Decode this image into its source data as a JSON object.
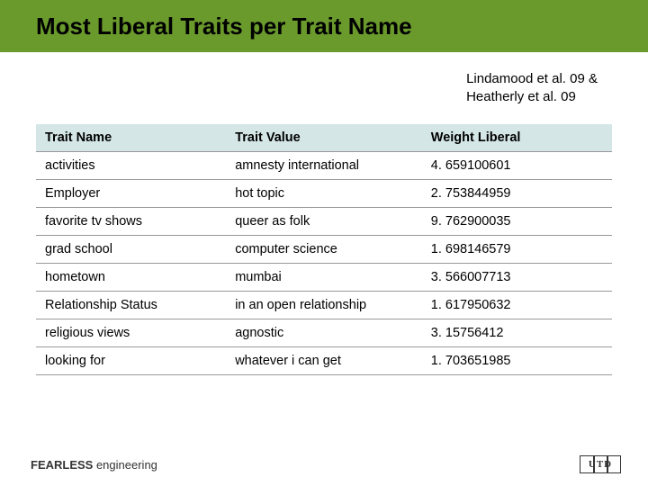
{
  "title": "Most Liberal Traits per Trait Name",
  "citation_line1": "Lindamood et al. 09 &",
  "citation_line2": "Heatherly et al. 09",
  "table": {
    "headers": [
      "Trait Name",
      "Trait Value",
      "Weight Liberal"
    ],
    "rows": [
      [
        "activities",
        "amnesty international",
        "4. 659100601"
      ],
      [
        "Employer",
        "hot topic",
        "2. 753844959"
      ],
      [
        "favorite tv shows",
        "queer as folk",
        "9. 762900035"
      ],
      [
        "grad school",
        "computer science",
        "1. 698146579"
      ],
      [
        "hometown",
        "mumbai",
        "3. 566007713"
      ],
      [
        "Relationship Status",
        "in an open relationship",
        "1. 617950632"
      ],
      [
        "religious views",
        "agnostic",
        "3. 15756412"
      ],
      [
        "looking for",
        "whatever i can get",
        "1. 703651985"
      ]
    ]
  },
  "footer_bold": "FEARLESS",
  "footer_rest": " engineering",
  "logo_text": "UTD",
  "colors": {
    "title_bar": "#6a9a2c",
    "header_bg": "#d4e6e6",
    "border": "#999999",
    "background": "#ffffff"
  }
}
